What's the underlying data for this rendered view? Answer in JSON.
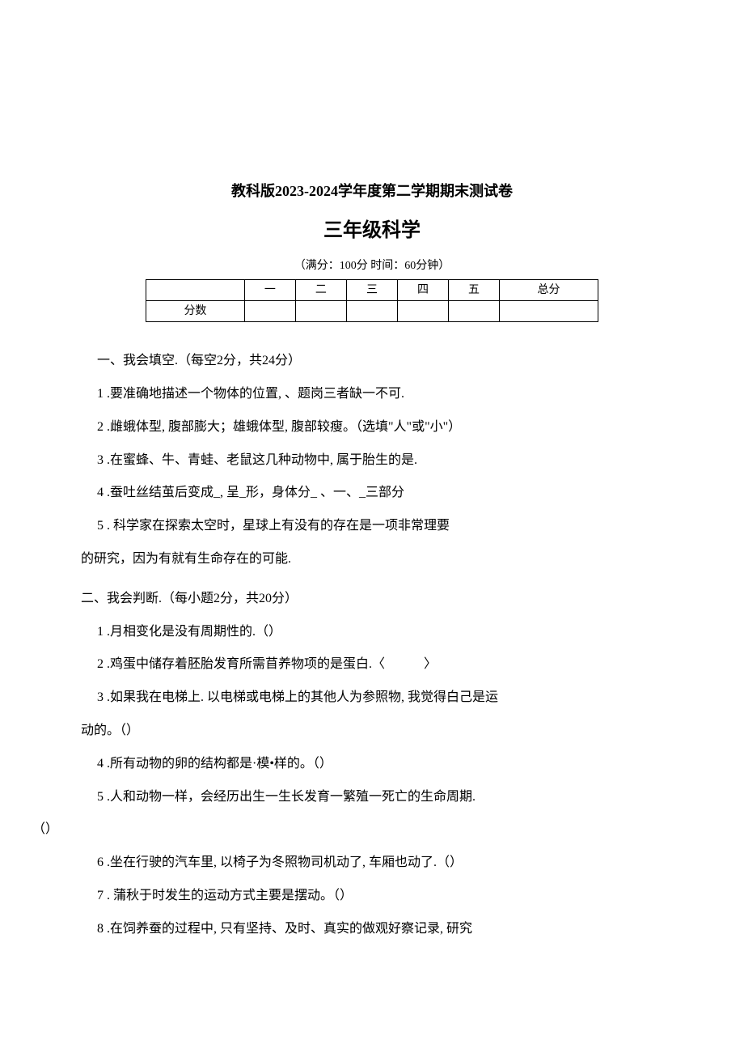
{
  "header": {
    "title_main": "教科版2023-2024学年度第二学期期末测试卷",
    "title_sub": "三年级科学",
    "subtitle": "（满分：100分 时间：60分钟）"
  },
  "score_table": {
    "headers": [
      "",
      "一",
      "二",
      "三",
      "四",
      "五",
      "总分"
    ],
    "row_label": "分数",
    "column_count": 7
  },
  "section1": {
    "heading": "一、我会填空.（每空2分，共24分）",
    "q1": "1 .要准确地描述一个物体的位置, 、题岗三者缺一不可.",
    "q2": "2 .雌蛾体型, 腹部膨大；雄蛾体型, 腹部较瘦。（选填\"人\"或\"小\"）",
    "q3": "3 .在蜜蜂、牛、青蛙、老鼠这几种动物中, 属于胎生的是.",
    "q4": "4 .蚕吐丝结茧后变成_, 呈_形，身体分_ 、一、_三部分",
    "q5_line1": "5 . 科学家在探索太空时，星球上有没有的存在是一项非常理要",
    "q5_line2": "的研究，因为有就有生命存在的可能."
  },
  "section2": {
    "heading": "二、我会判断.（每小题2分，共20分）",
    "q1": "1 .月相变化是没有周期性的.（）",
    "q2": "2 .鸡蛋中储存着胚胎发育所需苜养物项的是蛋白.〈　　　〉",
    "q3_line1": "3 .如果我在电梯上. 以电梯或电梯上的其他人为参照物, 我觉得白己是运",
    "q3_line2": "动的。（）",
    "q4": "4 .所有动物的卵的结构都是·模•样的。（）",
    "q5": "5 .人和动物一样，会经历出生一生长发育一繁殖一死亡的生命周期.",
    "q5_mark": "（）",
    "q6": "6 .坐在行驶的汽车里, 以椅子为冬照物司机动了, 车厢也动了.（）",
    "q7": "7 . 蒲秋于时发生的运动方式主要是摆动。（）",
    "q8": "8 .在饲养蚕的过程中, 只有坚持、及时、真实的做观好察记录, 研究"
  },
  "styles": {
    "background_color": "#ffffff",
    "text_color": "#000000",
    "border_color": "#000000",
    "title_main_fontsize": 18,
    "title_sub_fontsize": 24,
    "subtitle_fontsize": 14,
    "body_fontsize": 16,
    "table_fontsize": 14
  }
}
